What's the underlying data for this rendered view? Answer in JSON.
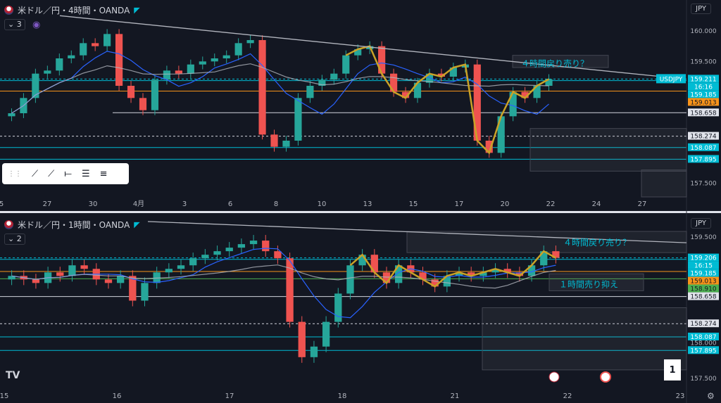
{
  "colors": {
    "bg": "#131722",
    "up": "#26a69a",
    "down": "#ef5350",
    "ma_blue": "#2962ff",
    "ma_white": "#b2b5be",
    "zigzag": "#c9a227",
    "orange": "#f7931a",
    "teal": "#00bcd4",
    "label_bg": "#26a69a"
  },
  "top_panel": {
    "title": "米ドル／円・4時間・OANDA",
    "indicator_count": "3",
    "currency_select": "JPY",
    "annotation": "４時間戻り売り？",
    "pair_tag": "USDJPY",
    "price_labels": [
      {
        "text": "160.000",
        "kind": "axis"
      },
      {
        "text": "159.500",
        "kind": "axis"
      },
      {
        "text": "159.211",
        "kind": "current"
      },
      {
        "text": "16:16",
        "kind": "current_time"
      },
      {
        "text": "159.185",
        "kind": "level_teal"
      },
      {
        "text": "159.013",
        "kind": "level_orange"
      },
      {
        "text": "158.658",
        "kind": "level_white"
      },
      {
        "text": "158.274",
        "kind": "level_white"
      },
      {
        "text": "158.087",
        "kind": "level_teal"
      },
      {
        "text": "157.895",
        "kind": "level_teal"
      },
      {
        "text": "157.500",
        "kind": "axis"
      }
    ],
    "x_labels": [
      "5",
      "27",
      "30",
      "4月",
      "3",
      "6",
      "8",
      "10",
      "13",
      "15",
      "17",
      "20",
      "22",
      "24",
      "27"
    ]
  },
  "bottom_panel": {
    "title": "米ドル／円・1時間・OANDA",
    "indicator_count": "2",
    "currency_select": "JPY",
    "annotation_4h": "４時間戻り売り？",
    "annotation_1h": "１時間売り抑え",
    "price_labels": [
      {
        "text": "159.500",
        "kind": "axis"
      },
      {
        "text": "159.206",
        "kind": "current"
      },
      {
        "text": "16:15",
        "kind": "current_time"
      },
      {
        "text": "159.185",
        "kind": "level_teal"
      },
      {
        "text": "159.013",
        "kind": "level_orange"
      },
      {
        "text": "158.910",
        "kind": "level_green"
      },
      {
        "text": "158.658",
        "kind": "level_white"
      },
      {
        "text": "158.274",
        "kind": "level_white"
      },
      {
        "text": "158.087",
        "kind": "level_teal"
      },
      {
        "text": "158.000",
        "kind": "axis"
      },
      {
        "text": "157.895",
        "kind": "level_teal"
      },
      {
        "text": "157.500",
        "kind": "axis"
      }
    ],
    "x_labels": [
      "15",
      "16",
      "17",
      "18",
      "21",
      "22",
      "23"
    ],
    "page_number": "1",
    "logo": "TV"
  },
  "chart_data": [
    {
      "type": "candlestick",
      "title": "米ドル／円・4時間・OANDA",
      "ylim": [
        157.3,
        160.3
      ],
      "x": [
        "5",
        "27",
        "30",
        "4月",
        "3",
        "6",
        "8",
        "10",
        "13",
        "15",
        "17",
        "20",
        "22",
        "24",
        "27"
      ],
      "closes": [
        158.65,
        158.9,
        159.3,
        159.35,
        159.55,
        159.6,
        159.8,
        159.75,
        159.95,
        159.1,
        158.9,
        158.7,
        159.2,
        159.35,
        159.3,
        159.45,
        159.5,
        159.55,
        159.6,
        159.8,
        159.85,
        158.3,
        158.1,
        158.2,
        158.9,
        159.1,
        159.2,
        159.3,
        159.6,
        159.7,
        159.75,
        159.3,
        159.0,
        158.9,
        159.15,
        159.3,
        159.25,
        159.4,
        159.45,
        158.2,
        158.0,
        158.6,
        159.0,
        158.9,
        159.1,
        159.21
      ],
      "levels": [
        159.185,
        159.013,
        158.658,
        158.274,
        158.087,
        157.895
      ],
      "current": 159.211
    },
    {
      "type": "candlestick",
      "title": "米ドル／円・1時間・OANDA",
      "ylim": [
        157.4,
        159.65
      ],
      "x": [
        "15",
        "16",
        "17",
        "18",
        "21",
        "22",
        "23"
      ],
      "closes": [
        158.95,
        158.9,
        158.85,
        159.0,
        158.95,
        159.1,
        159.05,
        158.9,
        158.85,
        158.95,
        158.6,
        158.85,
        159.0,
        159.05,
        159.1,
        159.2,
        159.25,
        159.3,
        159.35,
        159.4,
        159.45,
        159.3,
        159.2,
        158.3,
        157.8,
        157.95,
        158.3,
        158.7,
        159.1,
        159.25,
        159.0,
        158.85,
        159.1,
        159.0,
        158.9,
        158.8,
        158.95,
        159.0,
        158.95,
        159.0,
        159.05,
        159.0,
        158.95,
        159.1,
        159.3,
        159.206
      ],
      "levels": [
        159.185,
        159.013,
        158.91,
        158.658,
        158.274,
        158.087,
        157.895
      ],
      "current": 159.206
    }
  ]
}
